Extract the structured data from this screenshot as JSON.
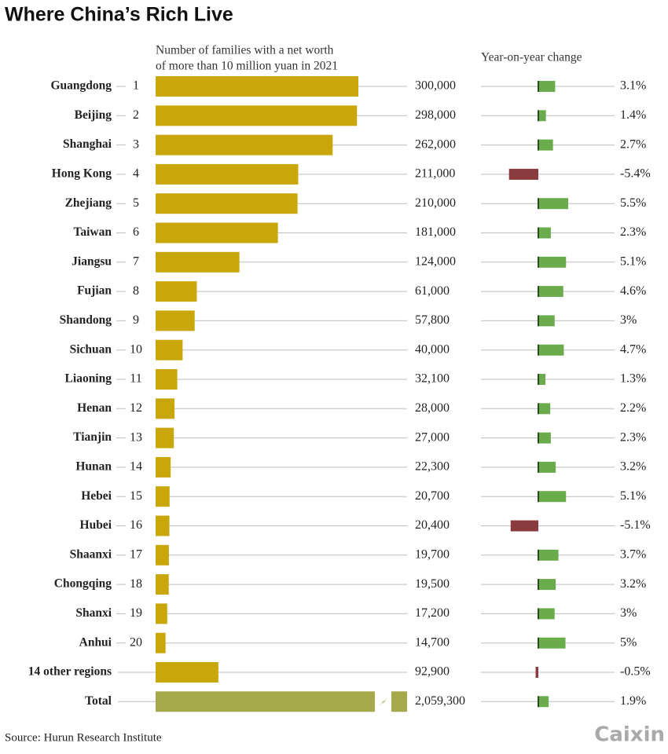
{
  "chart_data": {
    "type": "bar",
    "title": "Where China’s Rich Live",
    "value_header": [
      "Number of families with a net worth",
      "of more than 10 million yuan in 2021"
    ],
    "change_header": "Year-on-year change",
    "categories": [
      "Guangdong",
      "Beijing",
      "Shanghai",
      "Hong Kong",
      "Zhejiang",
      "Taiwan",
      "Jiangsu",
      "Fujian",
      "Shandong",
      "Sichuan",
      "Liaoning",
      "Henan",
      "Tianjin",
      "Hunan",
      "Hebei",
      "Hubei",
      "Shaanxi",
      "Chongqing",
      "Shanxi",
      "Anhui",
      "14 other regions",
      "Total"
    ],
    "ranks": [
      1,
      2,
      3,
      4,
      5,
      6,
      7,
      8,
      9,
      10,
      11,
      12,
      13,
      14,
      15,
      16,
      17,
      18,
      19,
      20,
      null,
      null
    ],
    "values": [
      300000,
      298000,
      262000,
      211000,
      210000,
      181000,
      124000,
      61000,
      57800,
      40000,
      32100,
      28000,
      27000,
      22300,
      20700,
      20400,
      19700,
      19500,
      17200,
      14700,
      92900,
      2059300
    ],
    "value_labels": [
      "300,000",
      "298,000",
      "262,000",
      "211,000",
      "210,000",
      "181,000",
      "124,000",
      "61,000",
      "57,800",
      "40,000",
      "32,100",
      "28,000",
      "27,000",
      "22,300",
      "20,700",
      "20,400",
      "19,700",
      "19,500",
      "17,200",
      "14,700",
      "92,900",
      "2,059,300"
    ],
    "bar_colors": [
      "#c9a70b",
      "#c9a70b",
      "#c9a70b",
      "#c9a70b",
      "#c9a70b",
      "#c9a70b",
      "#c9a70b",
      "#c9a70b",
      "#c9a70b",
      "#c9a70b",
      "#c9a70b",
      "#c9a70b",
      "#c9a70b",
      "#c9a70b",
      "#c9a70b",
      "#c9a70b",
      "#c9a70b",
      "#c9a70b",
      "#c9a70b",
      "#c9a70b",
      "#c9a70b",
      "#a6a84c"
    ],
    "xlim": [
      0,
      300000
    ],
    "changes": [
      3.1,
      1.4,
      2.7,
      -5.4,
      5.5,
      2.3,
      5.1,
      4.6,
      3,
      4.7,
      1.3,
      2.2,
      2.3,
      3.2,
      5.1,
      -5.1,
      3.7,
      3.2,
      3,
      5,
      -0.5,
      1.9
    ],
    "change_labels": [
      "3.1%",
      "1.4%",
      "2.7%",
      "-5.4%",
      "5.5%",
      "2.3%",
      "5.1%",
      "4.6%",
      "3%",
      "4.7%",
      "1.3%",
      "2.2%",
      "2.3%",
      "3.2%",
      "5.1%",
      "-5.1%",
      "3.7%",
      "3.2%",
      "3%",
      "5%",
      "-0.5%",
      "1.9%"
    ],
    "x2lim": [
      -5.5,
      5.5
    ],
    "positive_color": "#6aab4b",
    "negative_color": "#8b3a3e",
    "source": "Source: Hurun Research Institute",
    "logo": "Caixin"
  }
}
